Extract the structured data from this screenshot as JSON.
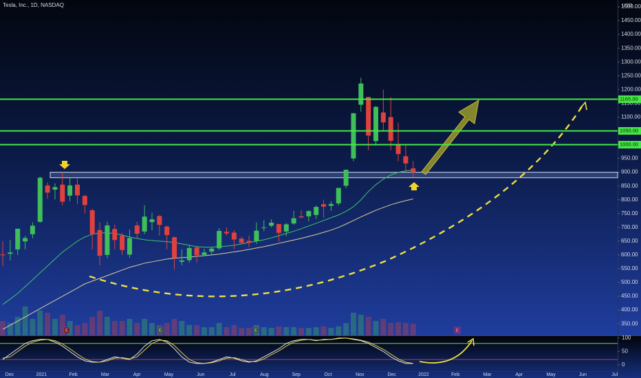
{
  "chart_data": {
    "type": "candlestick",
    "title": "Tesla, Inc., 1D, NASDAQ",
    "currency": "USD",
    "up_color": "#3fbf5a",
    "down_color": "#e0413c",
    "ohlc": [
      [
        602,
        650,
        560,
        599
      ],
      [
        604,
        654,
        580,
        609
      ],
      [
        620,
        695,
        600,
        695
      ],
      [
        649,
        669,
        620,
        661
      ],
      [
        675,
        718,
        660,
        706
      ],
      [
        720,
        884,
        717,
        880
      ],
      [
        852,
        863,
        803,
        826
      ],
      [
        837,
        860,
        801,
        846
      ],
      [
        855,
        900,
        780,
        793
      ],
      [
        815,
        880,
        795,
        852
      ],
      [
        855,
        877,
        785,
        816
      ],
      [
        814,
        818,
        750,
        781
      ],
      [
        762,
        768,
        620,
        675
      ],
      [
        690,
        720,
        563,
        597
      ],
      [
        600,
        720,
        588,
        707
      ],
      [
        694,
        710,
        620,
        654
      ],
      [
        670,
        680,
        600,
        618
      ],
      [
        601,
        692,
        590,
        661
      ],
      [
        707,
        720,
        660,
        677
      ],
      [
        685,
        780,
        675,
        739
      ],
      [
        719,
        753,
        690,
        729
      ],
      [
        741,
        745,
        670,
        709
      ],
      [
        703,
        706,
        620,
        672
      ],
      [
        664,
        667,
        546,
        589
      ],
      [
        575,
        620,
        563,
        580
      ],
      [
        581,
        635,
        572,
        625
      ],
      [
        627,
        633,
        572,
        599
      ],
      [
        600,
        622,
        595,
        609
      ],
      [
        612,
        630,
        598,
        623
      ],
      [
        624,
        697,
        617,
        687
      ],
      [
        684,
        700,
        670,
        678
      ],
      [
        681,
        690,
        620,
        656
      ],
      [
        659,
        666,
        640,
        644
      ],
      [
        651,
        670,
        628,
        644
      ],
      [
        650,
        718,
        640,
        688
      ],
      [
        700,
        726,
        686,
        700
      ],
      [
        706,
        729,
        700,
        717
      ],
      [
        712,
        712,
        648,
        680
      ],
      [
        685,
        715,
        668,
        711
      ],
      [
        714,
        760,
        710,
        733
      ],
      [
        740,
        762,
        733,
        736
      ],
      [
        740,
        762,
        722,
        759
      ],
      [
        745,
        779,
        730,
        774
      ],
      [
        784,
        800,
        735,
        775
      ],
      [
        778,
        795,
        760,
        785
      ],
      [
        787,
        843,
        779,
        843
      ],
      [
        851,
        910,
        842,
        909
      ],
      [
        950,
        1115,
        940,
        1114
      ],
      [
        1145,
        1243,
        1120,
        1222
      ],
      [
        1173,
        1174,
        980,
        1033
      ],
      [
        1013,
        1140,
        997,
        1137
      ],
      [
        1117,
        1200,
        1050,
        1081
      ],
      [
        1100,
        1172,
        980,
        1014
      ],
      [
        1000,
        1080,
        940,
        966
      ],
      [
        958,
        1000,
        900,
        932
      ],
      [
        914,
        940,
        880,
        900
      ]
    ],
    "volume": {
      "values": [
        35,
        30,
        45,
        70,
        40,
        60,
        55,
        40,
        50,
        35,
        25,
        30,
        45,
        60,
        45,
        35,
        35,
        40,
        30,
        40,
        30,
        25,
        30,
        40,
        35,
        25,
        25,
        20,
        20,
        30,
        20,
        25,
        18,
        18,
        25,
        20,
        18,
        22,
        20,
        20,
        18,
        18,
        20,
        22,
        18,
        22,
        30,
        55,
        50,
        45,
        35,
        40,
        30,
        32,
        30,
        28
      ]
    },
    "moving_averages": [
      {
        "color": "#3cc86a",
        "values": [
          420,
          440,
          460,
          485,
          510,
          535,
          560,
          585,
          610,
          630,
          650,
          665,
          675,
          680,
          680,
          678,
          672,
          665,
          660,
          655,
          652,
          650,
          648,
          645,
          640,
          635,
          630,
          628,
          628,
          630,
          632,
          635,
          640,
          645,
          650,
          655,
          662,
          670,
          678,
          686,
          695,
          705,
          715,
          725,
          735,
          745,
          758,
          775,
          800,
          830,
          855,
          875,
          890,
          900,
          905,
          908
        ]
      },
      {
        "color": "#d8d09a",
        "values": [
          330,
          345,
          360,
          375,
          390,
          405,
          420,
          435,
          450,
          465,
          480,
          495,
          505,
          515,
          525,
          535,
          545,
          555,
          562,
          570,
          575,
          580,
          585,
          588,
          590,
          592,
          595,
          597,
          600,
          603,
          607,
          611,
          615,
          620,
          625,
          630,
          636,
          642,
          648,
          654,
          660,
          667,
          674,
          682,
          690,
          700,
          712,
          725,
          738,
          750,
          762,
          772,
          782,
          790,
          797,
          803
        ]
      }
    ],
    "levels": [
      {
        "value": 1165,
        "label": "1165.00",
        "color": "#45e845"
      },
      {
        "value": 1050,
        "label": "1050.00",
        "color": "#45e845"
      },
      {
        "value": 1000,
        "label": "1000.00",
        "color": "#45e845"
      }
    ],
    "zone": [
      880,
      900
    ],
    "earnings_marker": "E",
    "ylim": [
      308,
      1525
    ],
    "yticks": [
      {
        "value": 350,
        "label": "350.00"
      },
      {
        "value": 400,
        "label": "400.00"
      },
      {
        "value": 450,
        "label": "450.00"
      },
      {
        "value": 500,
        "label": "500.00"
      },
      {
        "value": 550,
        "label": "550.00"
      },
      {
        "value": 600,
        "label": "600.00"
      },
      {
        "value": 650,
        "label": "650.00"
      },
      {
        "value": 700,
        "label": "700.00"
      },
      {
        "value": 750,
        "label": "750.00"
      },
      {
        "value": 800,
        "label": "800.00"
      },
      {
        "value": 850,
        "label": "850.00"
      },
      {
        "value": 900,
        "label": "900.00"
      },
      {
        "value": 950,
        "label": "950.00"
      },
      {
        "value": 1000,
        "label": "1000.00"
      },
      {
        "value": 1050,
        "label": "1050.00"
      },
      {
        "value": 1100,
        "label": "1100.00"
      },
      {
        "value": 1150,
        "label": "1150.00"
      },
      {
        "value": 1200,
        "label": "1200.00"
      },
      {
        "value": 1250,
        "label": "1250.00"
      },
      {
        "value": 1300,
        "label": "1300.00"
      },
      {
        "value": 1350,
        "label": "1350.00"
      },
      {
        "value": 1400,
        "label": "1400.00"
      },
      {
        "value": 1450,
        "label": "1450.00"
      },
      {
        "value": 1500,
        "label": "1500.00"
      }
    ],
    "x_labels": [
      "Dec",
      "2021",
      "Feb",
      "Mar",
      "Apr",
      "May",
      "Jun",
      "Jul",
      "Aug",
      "Sep",
      "Oct",
      "Nov",
      "Dec",
      "2022",
      "Feb",
      "Mar",
      "Apr",
      "May",
      "Jun",
      "Jul"
    ],
    "oscillator": {
      "ylim": [
        -44,
        110
      ],
      "yticks": [
        0,
        50,
        100
      ],
      "levels": [
        {
          "value": 80,
          "color": "#6fdc4a"
        },
        {
          "value": 20,
          "color": "#b04060"
        }
      ],
      "series": [
        {
          "color": "#e8e8e8",
          "values": [
            20,
            40,
            60,
            80,
            90,
            95,
            95,
            85,
            70,
            50,
            30,
            15,
            10,
            10,
            20,
            30,
            25,
            20,
            40,
            70,
            90,
            95,
            85,
            60,
            30,
            10,
            5,
            5,
            10,
            20,
            30,
            25,
            15,
            10,
            15,
            30,
            45,
            60,
            80,
            90,
            95,
            95,
            90,
            95,
            95,
            100,
            100,
            95,
            90,
            80,
            65,
            50,
            30,
            15,
            5,
            5
          ]
        },
        {
          "color": "#e8d24a",
          "values": [
            25,
            30,
            50,
            70,
            85,
            92,
            95,
            90,
            78,
            60,
            40,
            22,
            12,
            10,
            15,
            25,
            27,
            22,
            30,
            55,
            80,
            92,
            90,
            72,
            45,
            20,
            8,
            5,
            8,
            15,
            25,
            27,
            20,
            12,
            12,
            22,
            38,
            52,
            70,
            85,
            92,
            95,
            92,
            93,
            95,
            98,
            100,
            97,
            92,
            85,
            72,
            58,
            40,
            22,
            10,
            5
          ]
        }
      ]
    }
  }
}
